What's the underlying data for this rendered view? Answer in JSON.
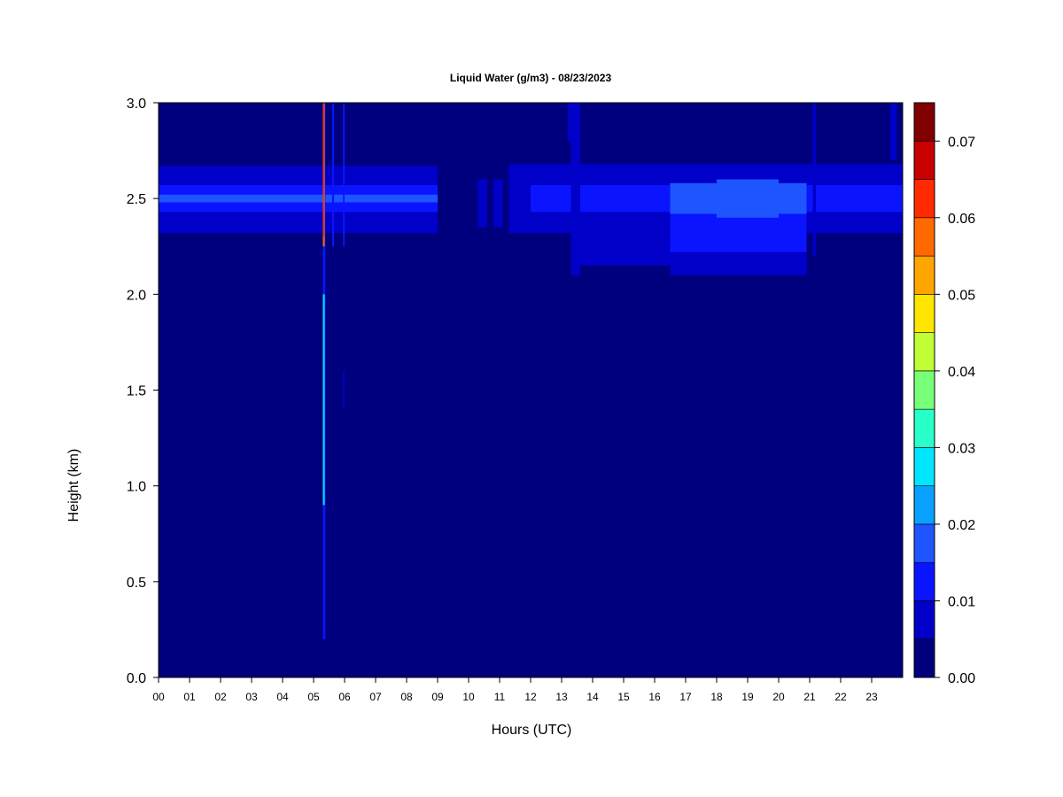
{
  "chart_data": {
    "type": "heatmap",
    "title": "Liquid Water (g/m3) - 08/23/2023",
    "xlabel": "Hours (UTC)",
    "ylabel": "Height (km)",
    "xlim": [
      0,
      24
    ],
    "ylim": [
      0.0,
      3.0
    ],
    "x_ticks": [
      0,
      1,
      2,
      3,
      4,
      5,
      6,
      7,
      8,
      9,
      10,
      11,
      12,
      13,
      14,
      15,
      16,
      17,
      18,
      19,
      20,
      21,
      22,
      23
    ],
    "x_tick_labels": [
      "00",
      "01",
      "02",
      "03",
      "04",
      "05",
      "06",
      "07",
      "08",
      "09",
      "10",
      "11",
      "12",
      "13",
      "14",
      "15",
      "16",
      "17",
      "18",
      "19",
      "20",
      "21",
      "22",
      "23"
    ],
    "y_ticks": [
      0.0,
      0.5,
      1.0,
      1.5,
      2.0,
      2.5,
      3.0
    ],
    "y_tick_labels": [
      "0.0",
      "0.5",
      "1.0",
      "1.5",
      "2.0",
      "2.5",
      "3.0"
    ],
    "background_value": 0.0,
    "colorbar": {
      "range": [
        0.0,
        0.075
      ],
      "levels": [
        0.0,
        0.005,
        0.01,
        0.015,
        0.02,
        0.025,
        0.03,
        0.035,
        0.04,
        0.045,
        0.05,
        0.055,
        0.06,
        0.065,
        0.07,
        0.075
      ],
      "colors": [
        "#00007f",
        "#0000c8",
        "#0b14ff",
        "#1e55ff",
        "#0aa0ff",
        "#00e6ff",
        "#29ffc8",
        "#78ff78",
        "#c0ff33",
        "#ffe600",
        "#ffa500",
        "#ff6a00",
        "#ff2a00",
        "#c80000",
        "#800000"
      ],
      "tick_values": [
        0.0,
        0.01,
        0.02,
        0.03,
        0.04,
        0.05,
        0.06,
        0.07
      ],
      "tick_labels": [
        "0.00",
        "0.01",
        "0.02",
        "0.03",
        "0.04",
        "0.05",
        "0.06",
        "0.07"
      ]
    },
    "features": [
      {
        "x0": 0.0,
        "x1": 9.0,
        "y0": 2.32,
        "y1": 2.67,
        "value": 0.008
      },
      {
        "x0": 0.0,
        "x1": 9.0,
        "y0": 2.43,
        "y1": 2.57,
        "value": 0.013
      },
      {
        "x0": 0.0,
        "x1": 9.0,
        "y0": 2.48,
        "y1": 2.52,
        "value": 0.017
      },
      {
        "x0": 10.3,
        "x1": 10.6,
        "y0": 2.35,
        "y1": 2.6,
        "value": 0.008
      },
      {
        "x0": 10.8,
        "x1": 11.1,
        "y0": 2.35,
        "y1": 2.6,
        "value": 0.008
      },
      {
        "x0": 11.3,
        "x1": 24.0,
        "y0": 2.32,
        "y1": 2.68,
        "value": 0.008
      },
      {
        "x0": 12.0,
        "x1": 24.0,
        "y0": 2.43,
        "y1": 2.57,
        "value": 0.013
      },
      {
        "x0": 13.3,
        "x1": 13.6,
        "y0": 2.1,
        "y1": 3.0,
        "value": 0.008
      },
      {
        "x0": 13.6,
        "x1": 16.5,
        "y0": 2.15,
        "y1": 2.32,
        "value": 0.006
      },
      {
        "x0": 16.5,
        "x1": 20.9,
        "y0": 2.1,
        "y1": 2.35,
        "value": 0.008
      },
      {
        "x0": 16.5,
        "x1": 20.9,
        "y0": 2.22,
        "y1": 2.47,
        "value": 0.012
      },
      {
        "x0": 16.5,
        "x1": 20.9,
        "y0": 2.42,
        "y1": 2.58,
        "value": 0.016
      },
      {
        "x0": 18.0,
        "x1": 20.0,
        "y0": 2.4,
        "y1": 2.6,
        "value": 0.019
      },
      {
        "x0": 5.3,
        "x1": 5.38,
        "y0": 0.2,
        "y1": 3.0,
        "value": 0.01
      },
      {
        "x0": 5.3,
        "x1": 5.36,
        "y0": 0.9,
        "y1": 2.0,
        "value": 0.025
      },
      {
        "x0": 5.3,
        "x1": 5.36,
        "y0": 2.25,
        "y1": 3.0,
        "value": 0.055
      },
      {
        "x0": 5.31,
        "x1": 5.34,
        "y0": 2.3,
        "y1": 3.0,
        "value": 0.062
      },
      {
        "x0": 5.6,
        "x1": 5.66,
        "y0": 2.25,
        "y1": 3.0,
        "value": 0.01
      },
      {
        "x0": 5.95,
        "x1": 6.0,
        "y0": 2.25,
        "y1": 3.0,
        "value": 0.01
      },
      {
        "x0": 5.95,
        "x1": 6.0,
        "y0": 1.4,
        "y1": 1.6,
        "value": 0.008
      },
      {
        "x0": 13.2,
        "x1": 13.35,
        "y0": 2.8,
        "y1": 3.0,
        "value": 0.008
      },
      {
        "x0": 21.1,
        "x1": 21.2,
        "y0": 2.2,
        "y1": 3.0,
        "value": 0.008
      },
      {
        "x0": 23.6,
        "x1": 23.8,
        "y0": 2.7,
        "y1": 3.0,
        "value": 0.008
      }
    ]
  }
}
